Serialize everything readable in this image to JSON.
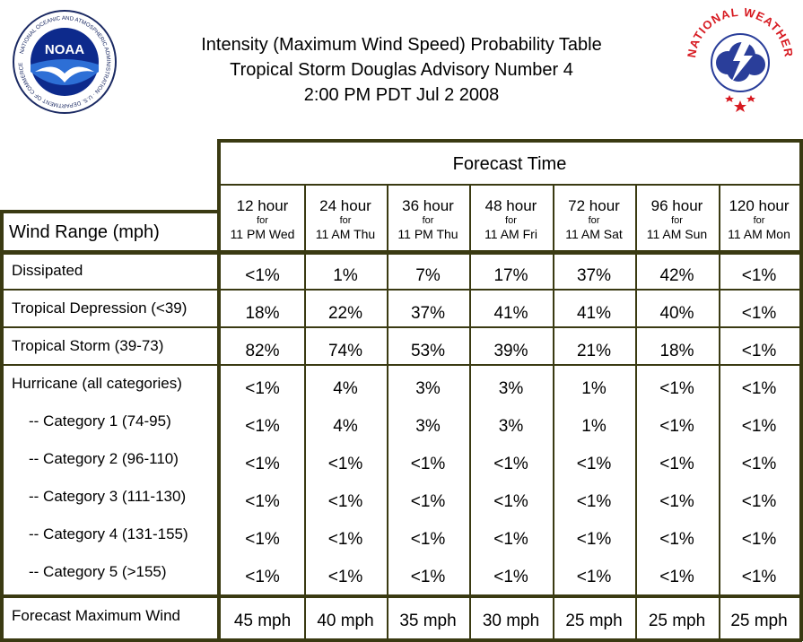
{
  "header": {
    "title_lines": [
      "Intensity (Maximum Wind Speed) Probability Table",
      "Tropical Storm Douglas Advisory Number 4",
      "2:00 PM PDT Jul 2 2008"
    ],
    "noaa_logo_text": "NOAA",
    "noaa_ring_text": "NATIONAL OCEANIC AND ATMOSPHERIC ADMINISTRATION · U.S. DEPARTMENT OF COMMERCE",
    "nws_ring_text": "NATIONAL WEATHER SERVICE"
  },
  "table": {
    "forecast_time_label": "Forecast Time",
    "wind_range_label": "Wind Range (mph)",
    "for_label": "for",
    "columns": [
      {
        "hour": "12 hour",
        "time": "11 PM Wed"
      },
      {
        "hour": "24 hour",
        "time": "11 AM Thu"
      },
      {
        "hour": "36 hour",
        "time": "11 PM Thu"
      },
      {
        "hour": "48 hour",
        "time": "11 AM Fri"
      },
      {
        "hour": "72 hour",
        "time": "11 AM Sat"
      },
      {
        "hour": "96 hour",
        "time": "11 AM Sun"
      },
      {
        "hour": "120 hour",
        "time": "11 AM Mon"
      }
    ],
    "rows": [
      {
        "label": "Dissipated",
        "values": [
          "<1%",
          "1%",
          "7%",
          "17%",
          "37%",
          "42%",
          "<1%"
        ]
      },
      {
        "label": "Tropical Depression (<39)",
        "values": [
          "18%",
          "22%",
          "37%",
          "41%",
          "41%",
          "40%",
          "<1%"
        ]
      },
      {
        "label": "Tropical Storm (39-73)",
        "values": [
          "82%",
          "74%",
          "53%",
          "39%",
          "21%",
          "18%",
          "<1%"
        ]
      },
      {
        "label": "Hurricane (all categories)",
        "values": [
          "<1%",
          "4%",
          "3%",
          "3%",
          "1%",
          "<1%",
          "<1%"
        ]
      },
      {
        "label": "-- Category 1 (74-95)",
        "values": [
          "<1%",
          "4%",
          "3%",
          "3%",
          "1%",
          "<1%",
          "<1%"
        ]
      },
      {
        "label": "-- Category 2 (96-110)",
        "values": [
          "<1%",
          "<1%",
          "<1%",
          "<1%",
          "<1%",
          "<1%",
          "<1%"
        ]
      },
      {
        "label": "-- Category 3 (111-130)",
        "values": [
          "<1%",
          "<1%",
          "<1%",
          "<1%",
          "<1%",
          "<1%",
          "<1%"
        ]
      },
      {
        "label": "-- Category 4 (131-155)",
        "values": [
          "<1%",
          "<1%",
          "<1%",
          "<1%",
          "<1%",
          "<1%",
          "<1%"
        ]
      },
      {
        "label": "-- Category 5 (>155)",
        "values": [
          "<1%",
          "<1%",
          "<1%",
          "<1%",
          "<1%",
          "<1%",
          "<1%"
        ]
      }
    ],
    "max_wind": {
      "label": "Forecast Maximum Wind",
      "values": [
        "45 mph",
        "40 mph",
        "35 mph",
        "30 mph",
        "25 mph",
        "25 mph",
        "25 mph"
      ]
    }
  }
}
